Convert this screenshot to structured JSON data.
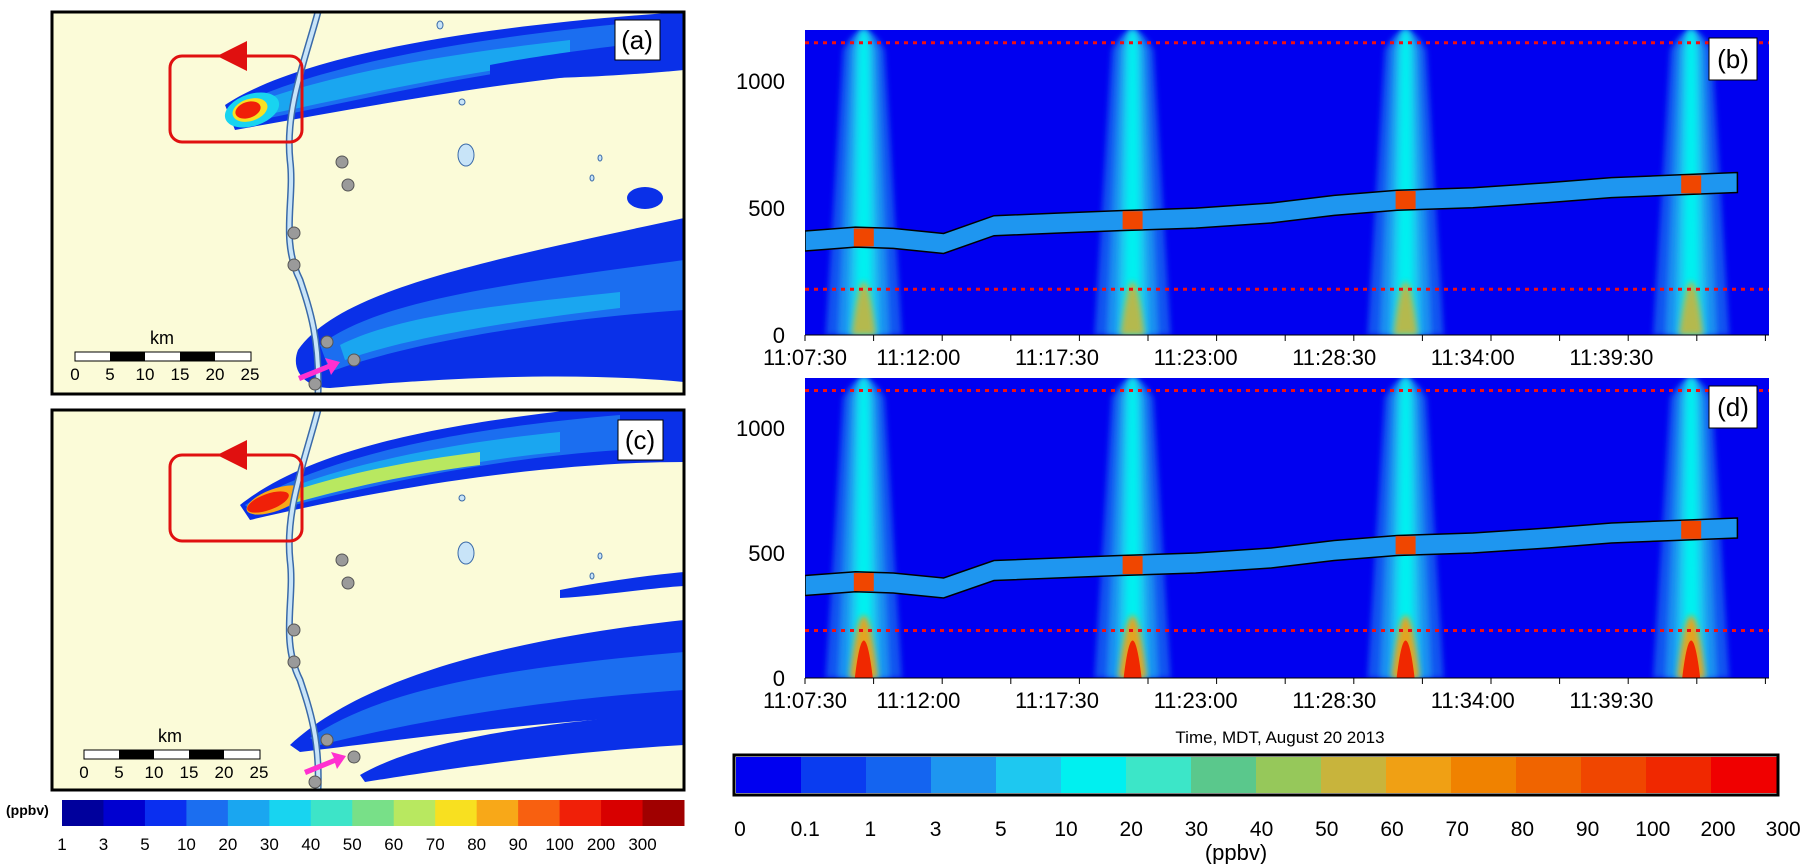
{
  "maps": [
    {
      "panel_label": "(a)",
      "scale_unit": "km",
      "scale_ticks": [
        "0",
        "5",
        "10",
        "15",
        "20",
        "25"
      ]
    },
    {
      "panel_label": "(c)",
      "scale_unit": "km",
      "scale_ticks": [
        "0",
        "5",
        "10",
        "15",
        "20",
        "25"
      ]
    }
  ],
  "map_colorbar": {
    "unit_label": "(ppbv)",
    "levels": [
      "1",
      "3",
      "5",
      "10",
      "20",
      "30",
      "40",
      "50",
      "60",
      "70",
      "80",
      "90",
      "100",
      "200",
      "300"
    ],
    "colors": [
      "#00009c",
      "#0000d0",
      "#0a2ff0",
      "#1b6ef0",
      "#1aa6f0",
      "#18d4f0",
      "#3de4c8",
      "#78e088",
      "#b8e860",
      "#f8e020",
      "#f8a818",
      "#f86010",
      "#f02008",
      "#d80000",
      "#a00000"
    ]
  },
  "chart_data": [
    {
      "type": "heatmap",
      "panel_label": "(b)",
      "x_ticks": [
        "11:07:30",
        "11:12:00",
        "11:17:30",
        "11:23:00",
        "11:28:30",
        "11:34:00",
        "11:39:30"
      ],
      "y_ticks": [
        0,
        500,
        1000
      ],
      "ylim": [
        0,
        1200
      ],
      "reference_lines_y": [
        180,
        1150
      ],
      "plume_times": [
        "11:09:50",
        "11:20:30",
        "11:31:20",
        "11:42:40"
      ],
      "flight_track": {
        "x": [
          "11:07:30",
          "11:09:30",
          "11:11:00",
          "11:13:00",
          "11:15:00",
          "11:17:30",
          "11:20:00",
          "11:23:00",
          "11:26:00",
          "11:28:30",
          "11:31:00",
          "11:34:00",
          "11:37:00",
          "11:39:30",
          "11:42:00",
          "11:44:30"
        ],
        "y": [
          370,
          385,
          380,
          360,
          430,
          440,
          450,
          460,
          480,
          510,
          530,
          540,
          560,
          580,
          590,
          600
        ]
      }
    },
    {
      "type": "heatmap",
      "panel_label": "(d)",
      "x_ticks": [
        "11:07:30",
        "11:12:00",
        "11:17:30",
        "11:23:00",
        "11:28:30",
        "11:34:00",
        "11:39:30"
      ],
      "y_ticks": [
        0,
        500,
        1000
      ],
      "ylim": [
        0,
        1200
      ],
      "reference_lines_y": [
        190,
        1150
      ],
      "plume_times": [
        "11:09:50",
        "11:20:30",
        "11:31:20",
        "11:42:40"
      ],
      "flight_track": {
        "x": [
          "11:07:30",
          "11:09:30",
          "11:11:00",
          "11:13:00",
          "11:15:00",
          "11:17:30",
          "11:20:00",
          "11:23:00",
          "11:26:00",
          "11:28:30",
          "11:31:00",
          "11:34:00",
          "11:37:00",
          "11:39:30",
          "11:42:00",
          "11:44:30"
        ],
        "y": [
          370,
          385,
          380,
          360,
          430,
          440,
          450,
          460,
          480,
          510,
          530,
          540,
          560,
          580,
          590,
          600
        ]
      },
      "xlabel": "Time, MDT, August 20 2013"
    }
  ],
  "chart_colorbar": {
    "unit_label": "(ppbv)",
    "levels": [
      "0",
      "0.1",
      "1",
      "3",
      "5",
      "10",
      "20",
      "30",
      "40",
      "50",
      "60",
      "70",
      "80",
      "90",
      "100",
      "200",
      "300"
    ],
    "colors": [
      "#0000f0",
      "#0a3cf0",
      "#1464f0",
      "#1e96f0",
      "#1ec8f0",
      "#00f0f0",
      "#3ce6c8",
      "#5ac88c",
      "#96c85a",
      "#c8b43c",
      "#f0a014",
      "#f08200",
      "#f06400",
      "#f04600",
      "#f02800",
      "#f00000"
    ]
  }
}
